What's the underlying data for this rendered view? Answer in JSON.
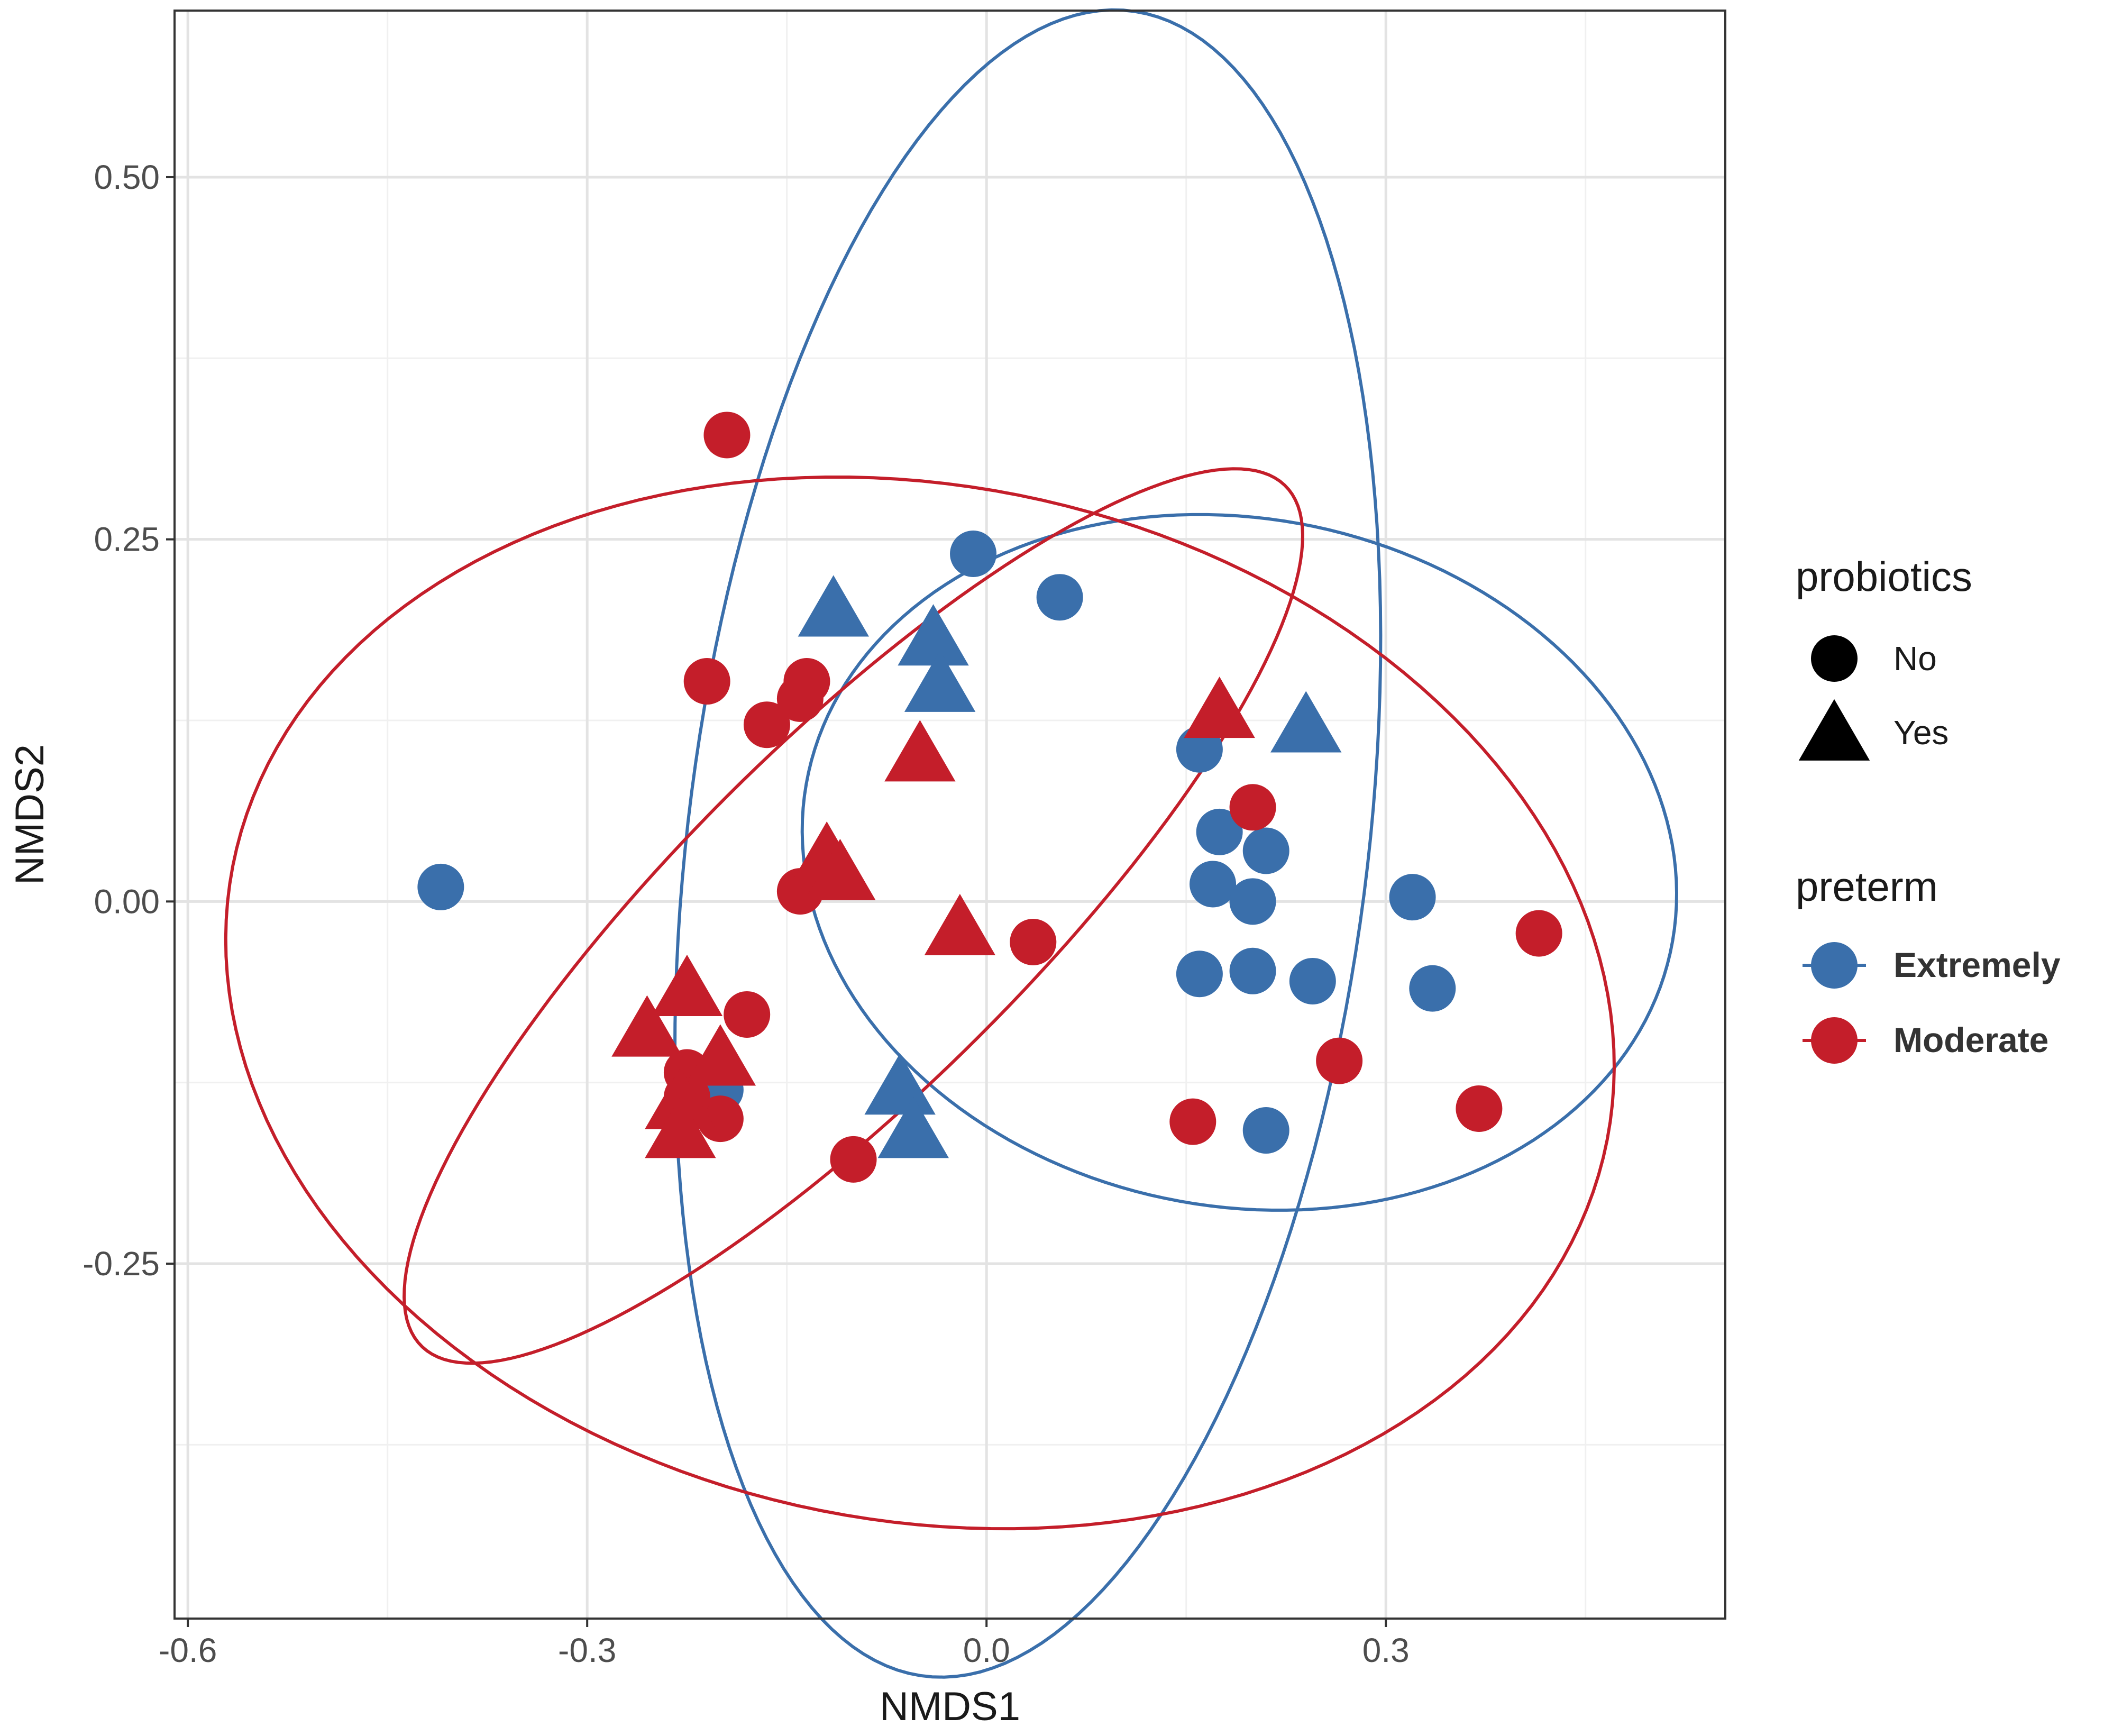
{
  "chart_data": {
    "type": "scatter",
    "title": "",
    "xlabel": "NMDS1",
    "ylabel": "NMDS2",
    "xlim": [
      -0.61,
      0.555
    ],
    "ylim": [
      -0.495,
      0.615
    ],
    "x_ticks": [
      {
        "value": -0.6,
        "label": "-0.6"
      },
      {
        "value": -0.3,
        "label": "-0.3"
      },
      {
        "value": 0.0,
        "label": "0.0"
      },
      {
        "value": 0.3,
        "label": "0.3"
      }
    ],
    "y_ticks": [
      {
        "value": 0.5,
        "label": "0.50"
      },
      {
        "value": 0.25,
        "label": "0.25"
      },
      {
        "value": 0.0,
        "label": "0.00"
      },
      {
        "value": -0.25,
        "label": "-0.25"
      }
    ],
    "x_minor": [
      -0.45,
      -0.15,
      0.15,
      0.45
    ],
    "y_minor": [
      0.375,
      0.125,
      -0.125,
      -0.375
    ],
    "grid": true,
    "legend": [
      {
        "title": "probiotics",
        "entries": [
          {
            "label": "No",
            "shape": "circle"
          },
          {
            "label": "Yes",
            "shape": "triangle"
          }
        ]
      },
      {
        "title": "preterm",
        "entries": [
          {
            "label": "Extremely",
            "color": "#3A6FAB"
          },
          {
            "label": "Moderate",
            "color": "#C41E2A"
          }
        ]
      }
    ],
    "colors": {
      "Extremely": "#3A6FAB",
      "Moderate": "#C41E2A"
    },
    "series": [
      {
        "name": "Extremely",
        "points": [
          {
            "x": -0.41,
            "y": 0.01,
            "shape": "circle"
          },
          {
            "x": -0.01,
            "y": 0.24,
            "shape": "circle"
          },
          {
            "x": 0.055,
            "y": 0.21,
            "shape": "circle"
          },
          {
            "x": 0.16,
            "y": 0.105,
            "shape": "circle"
          },
          {
            "x": 0.175,
            "y": 0.048,
            "shape": "circle"
          },
          {
            "x": 0.21,
            "y": 0.035,
            "shape": "circle"
          },
          {
            "x": 0.17,
            "y": 0.012,
            "shape": "circle"
          },
          {
            "x": 0.2,
            "y": 0.0,
            "shape": "circle"
          },
          {
            "x": 0.32,
            "y": 0.003,
            "shape": "circle"
          },
          {
            "x": 0.16,
            "y": -0.05,
            "shape": "circle"
          },
          {
            "x": 0.2,
            "y": -0.048,
            "shape": "circle"
          },
          {
            "x": 0.245,
            "y": -0.055,
            "shape": "circle"
          },
          {
            "x": 0.335,
            "y": -0.06,
            "shape": "circle"
          },
          {
            "x": 0.21,
            "y": -0.158,
            "shape": "circle"
          },
          {
            "x": -0.2,
            "y": -0.13,
            "shape": "circle"
          },
          {
            "x": -0.115,
            "y": 0.2,
            "shape": "triangle"
          },
          {
            "x": -0.04,
            "y": 0.18,
            "shape": "triangle"
          },
          {
            "x": -0.035,
            "y": 0.148,
            "shape": "triangle"
          },
          {
            "x": 0.24,
            "y": 0.12,
            "shape": "triangle"
          },
          {
            "x": -0.065,
            "y": -0.13,
            "shape": "triangle"
          },
          {
            "x": -0.055,
            "y": -0.16,
            "shape": "triangle"
          }
        ]
      },
      {
        "name": "Moderate",
        "points": [
          {
            "x": -0.195,
            "y": 0.322,
            "shape": "circle"
          },
          {
            "x": -0.21,
            "y": 0.152,
            "shape": "circle"
          },
          {
            "x": -0.135,
            "y": 0.152,
            "shape": "circle"
          },
          {
            "x": -0.14,
            "y": 0.14,
            "shape": "circle"
          },
          {
            "x": -0.165,
            "y": 0.122,
            "shape": "circle"
          },
          {
            "x": 0.2,
            "y": 0.065,
            "shape": "circle"
          },
          {
            "x": -0.14,
            "y": 0.007,
            "shape": "circle"
          },
          {
            "x": 0.035,
            "y": -0.028,
            "shape": "circle"
          },
          {
            "x": 0.415,
            "y": -0.022,
            "shape": "circle"
          },
          {
            "x": -0.18,
            "y": -0.078,
            "shape": "circle"
          },
          {
            "x": 0.265,
            "y": -0.11,
            "shape": "circle"
          },
          {
            "x": 0.37,
            "y": -0.143,
            "shape": "circle"
          },
          {
            "x": 0.155,
            "y": -0.152,
            "shape": "circle"
          },
          {
            "x": -0.2,
            "y": -0.15,
            "shape": "circle"
          },
          {
            "x": -0.225,
            "y": -0.118,
            "shape": "circle"
          },
          {
            "x": -0.225,
            "y": -0.135,
            "shape": "circle"
          },
          {
            "x": -0.1,
            "y": -0.178,
            "shape": "circle"
          },
          {
            "x": 0.175,
            "y": 0.13,
            "shape": "triangle"
          },
          {
            "x": -0.05,
            "y": 0.1,
            "shape": "triangle"
          },
          {
            "x": -0.12,
            "y": 0.03,
            "shape": "triangle"
          },
          {
            "x": -0.11,
            "y": 0.018,
            "shape": "triangle"
          },
          {
            "x": -0.02,
            "y": -0.02,
            "shape": "triangle"
          },
          {
            "x": -0.225,
            "y": -0.062,
            "shape": "triangle"
          },
          {
            "x": -0.255,
            "y": -0.09,
            "shape": "triangle"
          },
          {
            "x": -0.2,
            "y": -0.11,
            "shape": "triangle"
          },
          {
            "x": -0.23,
            "y": -0.14,
            "shape": "triangle"
          },
          {
            "x": -0.23,
            "y": -0.16,
            "shape": "triangle"
          }
        ]
      }
    ],
    "ellipses": [
      {
        "group": "Extremely",
        "cx": 0.031,
        "cy": 0.04,
        "rx": 0.58,
        "ry": 0.255,
        "angle_deg": 82
      },
      {
        "group": "Extremely",
        "cx": 0.19,
        "cy": 0.027,
        "rx": 0.33,
        "ry": 0.238,
        "angle_deg": -8
      },
      {
        "group": "Moderate",
        "cx": -0.05,
        "cy": -0.07,
        "rx": 0.525,
        "ry": 0.358,
        "angle_deg": -9
      },
      {
        "group": "Moderate",
        "cx": -0.1,
        "cy": -0.01,
        "rx": 0.44,
        "ry": 0.125,
        "angle_deg": 42
      }
    ]
  }
}
